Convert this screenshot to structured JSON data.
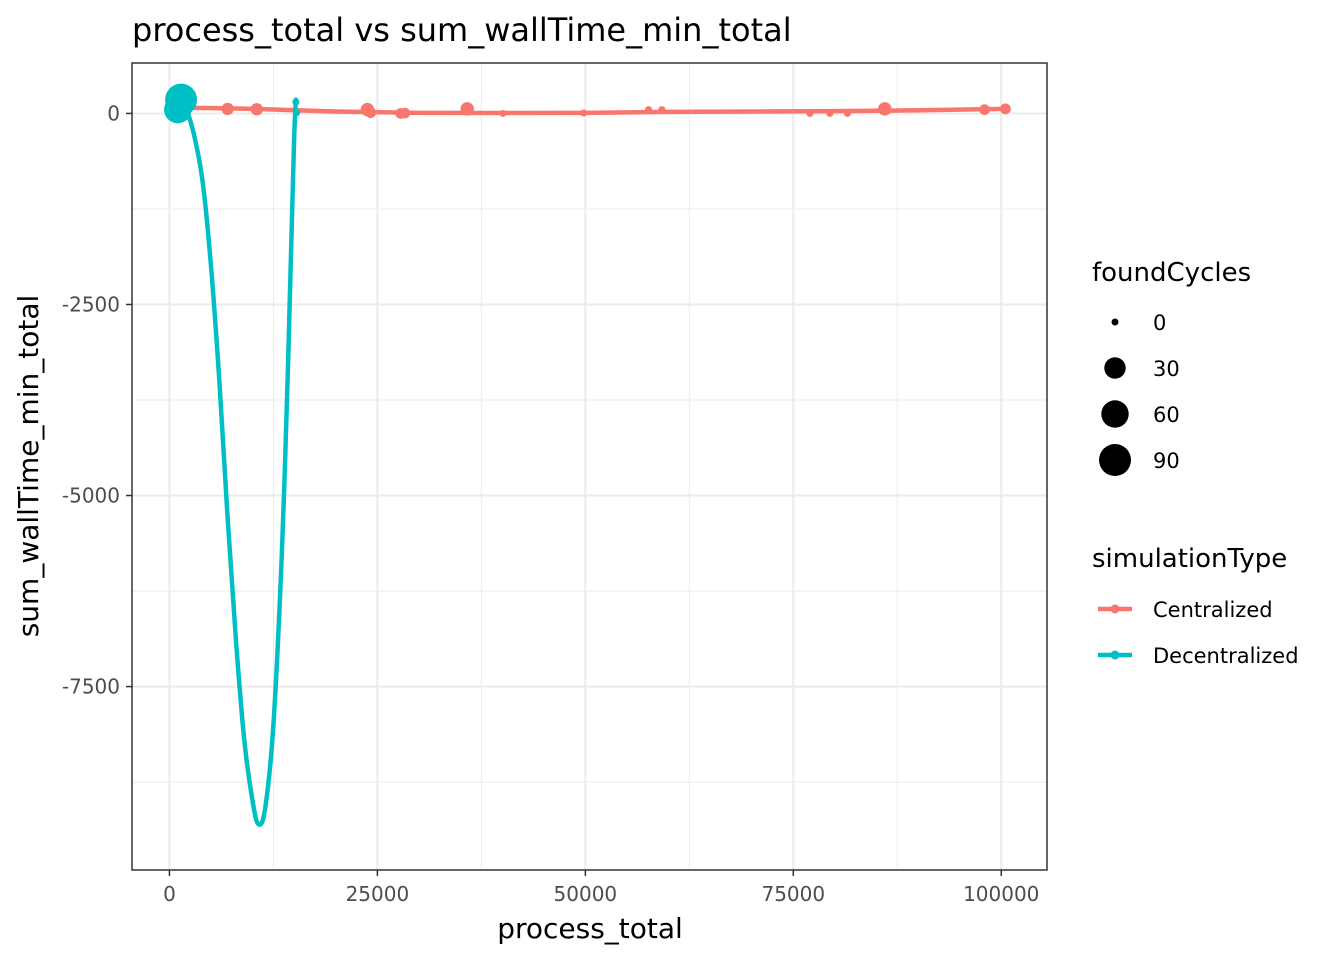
{
  "chart_data": {
    "type": "scatter",
    "title": "process_total  vs  sum_wallTime_min_total",
    "xlabel": "process_total",
    "ylabel": "sum_wallTime_min_total",
    "xlim": [
      -4500,
      105500
    ],
    "ylim": [
      -9900,
      660
    ],
    "x_ticks": [
      0,
      25000,
      50000,
      75000,
      100000
    ],
    "x_tick_labels": [
      "0",
      "25000",
      "50000",
      "75000",
      "100000"
    ],
    "y_ticks": [
      0,
      -2500,
      -5000,
      -7500
    ],
    "y_tick_labels": [
      "0",
      "-2500",
      "-5000",
      "-7500"
    ],
    "grid": true,
    "legend_placement": "right",
    "size_legend": {
      "title": "foundCycles",
      "entries": [
        {
          "label": "0",
          "value": 0
        },
        {
          "label": "30",
          "value": 30
        },
        {
          "label": "60",
          "value": 60
        },
        {
          "label": "90",
          "value": 90
        }
      ]
    },
    "color_legend": {
      "title": "simulationType",
      "entries": [
        {
          "label": "Centralized",
          "color": "#F8766D"
        },
        {
          "label": "Decentralized",
          "color": "#00BFC4"
        }
      ]
    },
    "series": [
      {
        "name": "Centralized",
        "color": "#F8766D",
        "points": [
          {
            "x": 1500,
            "y": 80,
            "size": 0
          },
          {
            "x": 7000,
            "y": 60,
            "size": 4
          },
          {
            "x": 10500,
            "y": 55,
            "size": 4
          },
          {
            "x": 23800,
            "y": 50,
            "size": 6
          },
          {
            "x": 24200,
            "y": 10,
            "size": 2
          },
          {
            "x": 27800,
            "y": 0,
            "size": 2
          },
          {
            "x": 28300,
            "y": 5,
            "size": 2
          },
          {
            "x": 35800,
            "y": 60,
            "size": 6
          },
          {
            "x": 40100,
            "y": 0,
            "size": 0
          },
          {
            "x": 49800,
            "y": 5,
            "size": 0
          },
          {
            "x": 57600,
            "y": 50,
            "size": 0
          },
          {
            "x": 59200,
            "y": 50,
            "size": 0
          },
          {
            "x": 77000,
            "y": 0,
            "size": 0
          },
          {
            "x": 79400,
            "y": 0,
            "size": 0
          },
          {
            "x": 81500,
            "y": 0,
            "size": 0
          },
          {
            "x": 86000,
            "y": 60,
            "size": 6
          },
          {
            "x": 98000,
            "y": 50,
            "size": 2
          },
          {
            "x": 100500,
            "y": 60,
            "size": 2
          }
        ],
        "smooth": [
          {
            "x": 1500,
            "y": 75
          },
          {
            "x": 10000,
            "y": 60
          },
          {
            "x": 20000,
            "y": 25
          },
          {
            "x": 30000,
            "y": 8
          },
          {
            "x": 40000,
            "y": 5
          },
          {
            "x": 50000,
            "y": 8
          },
          {
            "x": 60000,
            "y": 20
          },
          {
            "x": 70000,
            "y": 25
          },
          {
            "x": 80000,
            "y": 30
          },
          {
            "x": 90000,
            "y": 42
          },
          {
            "x": 100500,
            "y": 60
          }
        ]
      },
      {
        "name": "Decentralized",
        "color": "#00BFC4",
        "points": [
          {
            "x": 1000,
            "y": 50,
            "size": 60
          },
          {
            "x": 1400,
            "y": 180,
            "size": 90
          },
          {
            "x": 15200,
            "y": 150,
            "size": 0
          },
          {
            "x": 15300,
            "y": 10,
            "size": 0
          }
        ],
        "smooth": [
          {
            "x": 1000,
            "y": 150
          },
          {
            "x": 2000,
            "y": 50
          },
          {
            "x": 3000,
            "y": -300
          },
          {
            "x": 4000,
            "y": -900
          },
          {
            "x": 5000,
            "y": -2000
          },
          {
            "x": 6000,
            "y": -3500
          },
          {
            "x": 7000,
            "y": -5300
          },
          {
            "x": 8000,
            "y": -6900
          },
          {
            "x": 9000,
            "y": -8200
          },
          {
            "x": 10000,
            "y": -9000
          },
          {
            "x": 10700,
            "y": -9300
          },
          {
            "x": 11500,
            "y": -9100
          },
          {
            "x": 12500,
            "y": -8000
          },
          {
            "x": 13500,
            "y": -5800
          },
          {
            "x": 14200,
            "y": -3500
          },
          {
            "x": 14700,
            "y": -1500
          },
          {
            "x": 15000,
            "y": -300
          },
          {
            "x": 15200,
            "y": 180
          }
        ]
      }
    ]
  }
}
